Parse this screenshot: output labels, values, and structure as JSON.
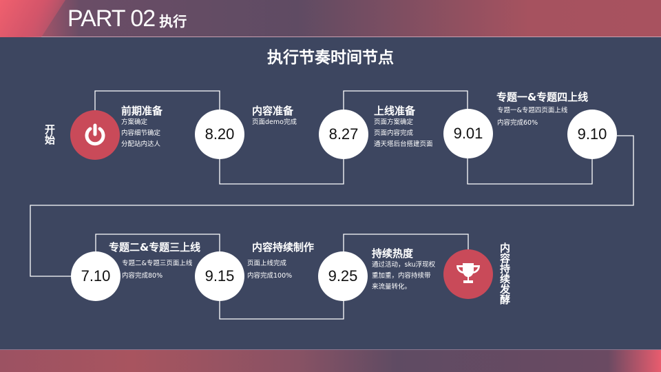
{
  "header": {
    "title": "PART 02",
    "title_zh": "执行"
  },
  "main_title": "执行节奏时间节点",
  "start_label": "开始",
  "end_label": "内容持续发酵",
  "colors": {
    "background": "#3d4660",
    "accent": "#c94a59",
    "node": "#ffffff"
  },
  "icons": {
    "start": "power-icon",
    "end": "trophy-icon"
  },
  "milestones": [
    {
      "date": "",
      "title": "前期准备",
      "details": [
        "方案确定",
        "内容细节确定",
        "分配站内达人"
      ]
    },
    {
      "date": "8.20",
      "title": "内容准备",
      "details": [
        "页面demo完成"
      ]
    },
    {
      "date": "8.27",
      "title": "上线准备",
      "details": [
        "页面方案确定",
        "页面内容完成",
        "通天塔后台搭建页面"
      ]
    },
    {
      "date": "9.01",
      "title": "专题一&专题四上线",
      "details": [
        "专题一&专题四页面上线",
        "内容完成60%"
      ]
    },
    {
      "date": "9.10"
    },
    {
      "date": "7.10",
      "title": "专题二&专题三上线",
      "details": [
        "专题二&专题三页面上线",
        "内容完成80%"
      ]
    },
    {
      "date": "9.15",
      "title": "内容持续制作",
      "details": [
        "页面上线完成",
        "内容完成100%"
      ]
    },
    {
      "date": "9.25",
      "title": "持续热度",
      "details": [
        "通过活动，sku浮现权",
        "重加重，内容持续带",
        "来流量转化。"
      ]
    }
  ]
}
